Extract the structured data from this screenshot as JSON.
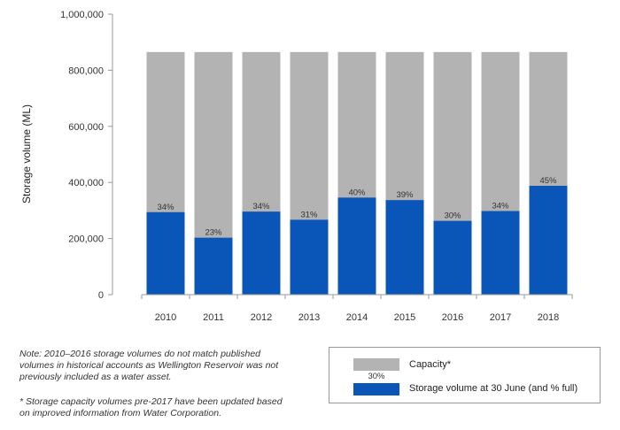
{
  "chart_data": {
    "type": "bar",
    "stacked_overlay": true,
    "categories": [
      "2010",
      "2011",
      "2012",
      "2013",
      "2014",
      "2015",
      "2016",
      "2017",
      "2018"
    ],
    "series": [
      {
        "name": "Capacity*",
        "color": "#b3b3b3",
        "values": [
          865000,
          865000,
          865000,
          865000,
          865000,
          865000,
          865000,
          865000,
          865000
        ]
      },
      {
        "name": "Storage volume at 30 June (and % full)",
        "color": "#0a55b8",
        "values": [
          294000,
          203000,
          296000,
          267000,
          346000,
          337000,
          263000,
          298000,
          388000
        ]
      }
    ],
    "percent_labels": [
      "34%",
      "23%",
      "34%",
      "31%",
      "40%",
      "39%",
      "30%",
      "34%",
      "45%"
    ],
    "ylabel": "Storage volume (ML)",
    "ylim": [
      0,
      1000000
    ],
    "yticks": [
      0,
      200000,
      400000,
      600000,
      800000,
      1000000
    ],
    "ytick_labels": [
      "0",
      "200,000",
      "400,000",
      "600,000",
      "800,000",
      "1,000,000"
    ]
  },
  "legend": {
    "capacity_label": "Capacity*",
    "storage_label": "Storage volume at 30 June (and % full)",
    "storage_pct_example": "30%"
  },
  "notes": {
    "note1": "Note: 2010–2016 storage volumes do not match published volumes in historical accounts as Wellington Reservoir was not previously included as a water asset.",
    "note2": "* Storage capacity volumes pre-2017 have been updated based on improved information from Water Corporation."
  }
}
